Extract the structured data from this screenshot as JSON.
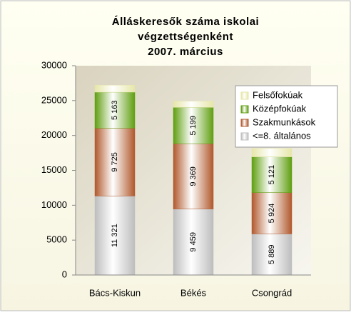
{
  "chart_data": {
    "type": "stacked_bar",
    "title": [
      "Álláskeresők száma iskolai",
      "végzettségenként",
      "2007. március"
    ],
    "categories": [
      "Bács-Kiskun",
      "Békés",
      "Csongrád"
    ],
    "series": [
      {
        "name": "<=8. általános",
        "color": "#bdbdbd",
        "values": [
          11321,
          9459,
          5889
        ],
        "value_labels": [
          "11 321",
          "9 459",
          "5 889"
        ]
      },
      {
        "name": "Szakmunkások",
        "color": "#b0582c",
        "values": [
          9725,
          9369,
          5924
        ],
        "value_labels": [
          "9 725",
          "9 369",
          "5 924"
        ]
      },
      {
        "name": "Középfokúak",
        "color": "#5f9e10",
        "values": [
          5163,
          5199,
          5121
        ],
        "value_labels": [
          "5 163",
          "5 199",
          "5 121"
        ]
      },
      {
        "name": "Felsőfokúak",
        "color": "#e6e6a8",
        "values": [
          1000,
          900,
          1200
        ]
      }
    ],
    "ylim": [
      0,
      30000
    ],
    "yticks": [
      0,
      5000,
      10000,
      15000,
      20000,
      25000,
      30000
    ],
    "grid": false,
    "legend": "top-right"
  }
}
